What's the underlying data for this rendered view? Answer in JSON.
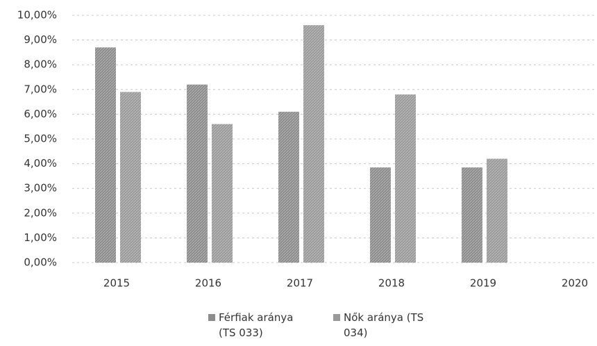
{
  "chart_data": {
    "type": "bar",
    "categories": [
      "2015",
      "2016",
      "2017",
      "2018",
      "2019",
      "2020"
    ],
    "series": [
      {
        "name": "Férfiak aránya (TS 033)",
        "color": "#8c8c8c",
        "values": [
          8.7,
          7.2,
          6.1,
          3.85,
          3.85,
          null
        ]
      },
      {
        "name": "Nők aránya (TS 034)",
        "color": "#9a9a9a",
        "values": [
          6.9,
          5.6,
          9.6,
          6.8,
          4.2,
          null
        ]
      }
    ],
    "ylim": [
      0,
      10
    ],
    "yticks": [
      {
        "value": 0,
        "label": "0,00%"
      },
      {
        "value": 1,
        "label": "1,00%"
      },
      {
        "value": 2,
        "label": "2,00%"
      },
      {
        "value": 3,
        "label": "3,00%"
      },
      {
        "value": 4,
        "label": "4,00%"
      },
      {
        "value": 5,
        "label": "5,00%"
      },
      {
        "value": 6,
        "label": "6,00%"
      },
      {
        "value": 7,
        "label": "7,00%"
      },
      {
        "value": 8,
        "label": "8,00%"
      },
      {
        "value": 9,
        "label": "9,00%"
      },
      {
        "value": 10,
        "label": "10,00%"
      }
    ],
    "grid": true,
    "legend": "bottom"
  }
}
